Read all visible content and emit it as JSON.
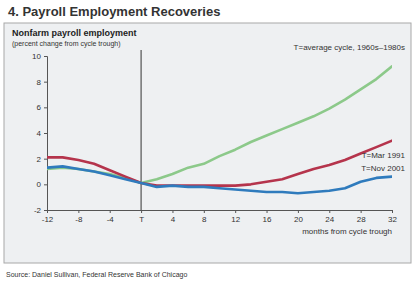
{
  "chart_data": {
    "type": "line",
    "title": "4. Payroll Employment Recoveries",
    "subtitle": "Nonfarm payroll employment",
    "ylabel": "(percent change from cycle trough)",
    "xlabel": "months from cycle trough",
    "source": "Source: Daniel Sullivan, Federal Reserve Bank of Chicago",
    "x": [
      -12,
      -10,
      -8,
      -6,
      -4,
      -2,
      0,
      2,
      4,
      6,
      8,
      10,
      12,
      14,
      16,
      18,
      20,
      22,
      24,
      26,
      28,
      30,
      32
    ],
    "series": [
      {
        "name": "T=average cycle, 1960s–1980s",
        "color": "#8cc98a",
        "values": [
          1.2,
          1.3,
          1.2,
          1.0,
          0.8,
          0.5,
          0.1,
          0.4,
          0.8,
          1.3,
          1.6,
          2.2,
          2.7,
          3.3,
          3.8,
          4.3,
          4.8,
          5.3,
          5.9,
          6.6,
          7.4,
          8.2,
          9.2
        ]
      },
      {
        "name": "T=Mar 1991",
        "color": "#b5344c",
        "values": [
          2.1,
          2.1,
          1.9,
          1.6,
          1.1,
          0.6,
          0.1,
          -0.1,
          -0.1,
          -0.1,
          -0.1,
          -0.1,
          -0.1,
          0.0,
          0.2,
          0.4,
          0.8,
          1.2,
          1.5,
          1.9,
          2.4,
          2.9,
          3.4
        ]
      },
      {
        "name": "T=Nov 2001",
        "color": "#2f7bbd",
        "values": [
          1.3,
          1.4,
          1.2,
          1.0,
          0.7,
          0.4,
          0.1,
          -0.2,
          -0.1,
          -0.2,
          -0.2,
          -0.3,
          -0.4,
          -0.5,
          -0.6,
          -0.6,
          -0.7,
          -0.6,
          -0.5,
          -0.3,
          0.2,
          0.5,
          0.6
        ]
      }
    ],
    "xlim": [
      -12,
      32
    ],
    "xticks": [
      -12,
      -8,
      -4,
      {
        "value": 0,
        "label": "T"
      },
      4,
      8,
      12,
      16,
      20,
      24,
      28,
      32
    ],
    "ylim": [
      -2,
      10
    ],
    "yticks": [
      -2,
      0,
      2,
      4,
      6,
      8,
      10
    ],
    "grid": false
  }
}
